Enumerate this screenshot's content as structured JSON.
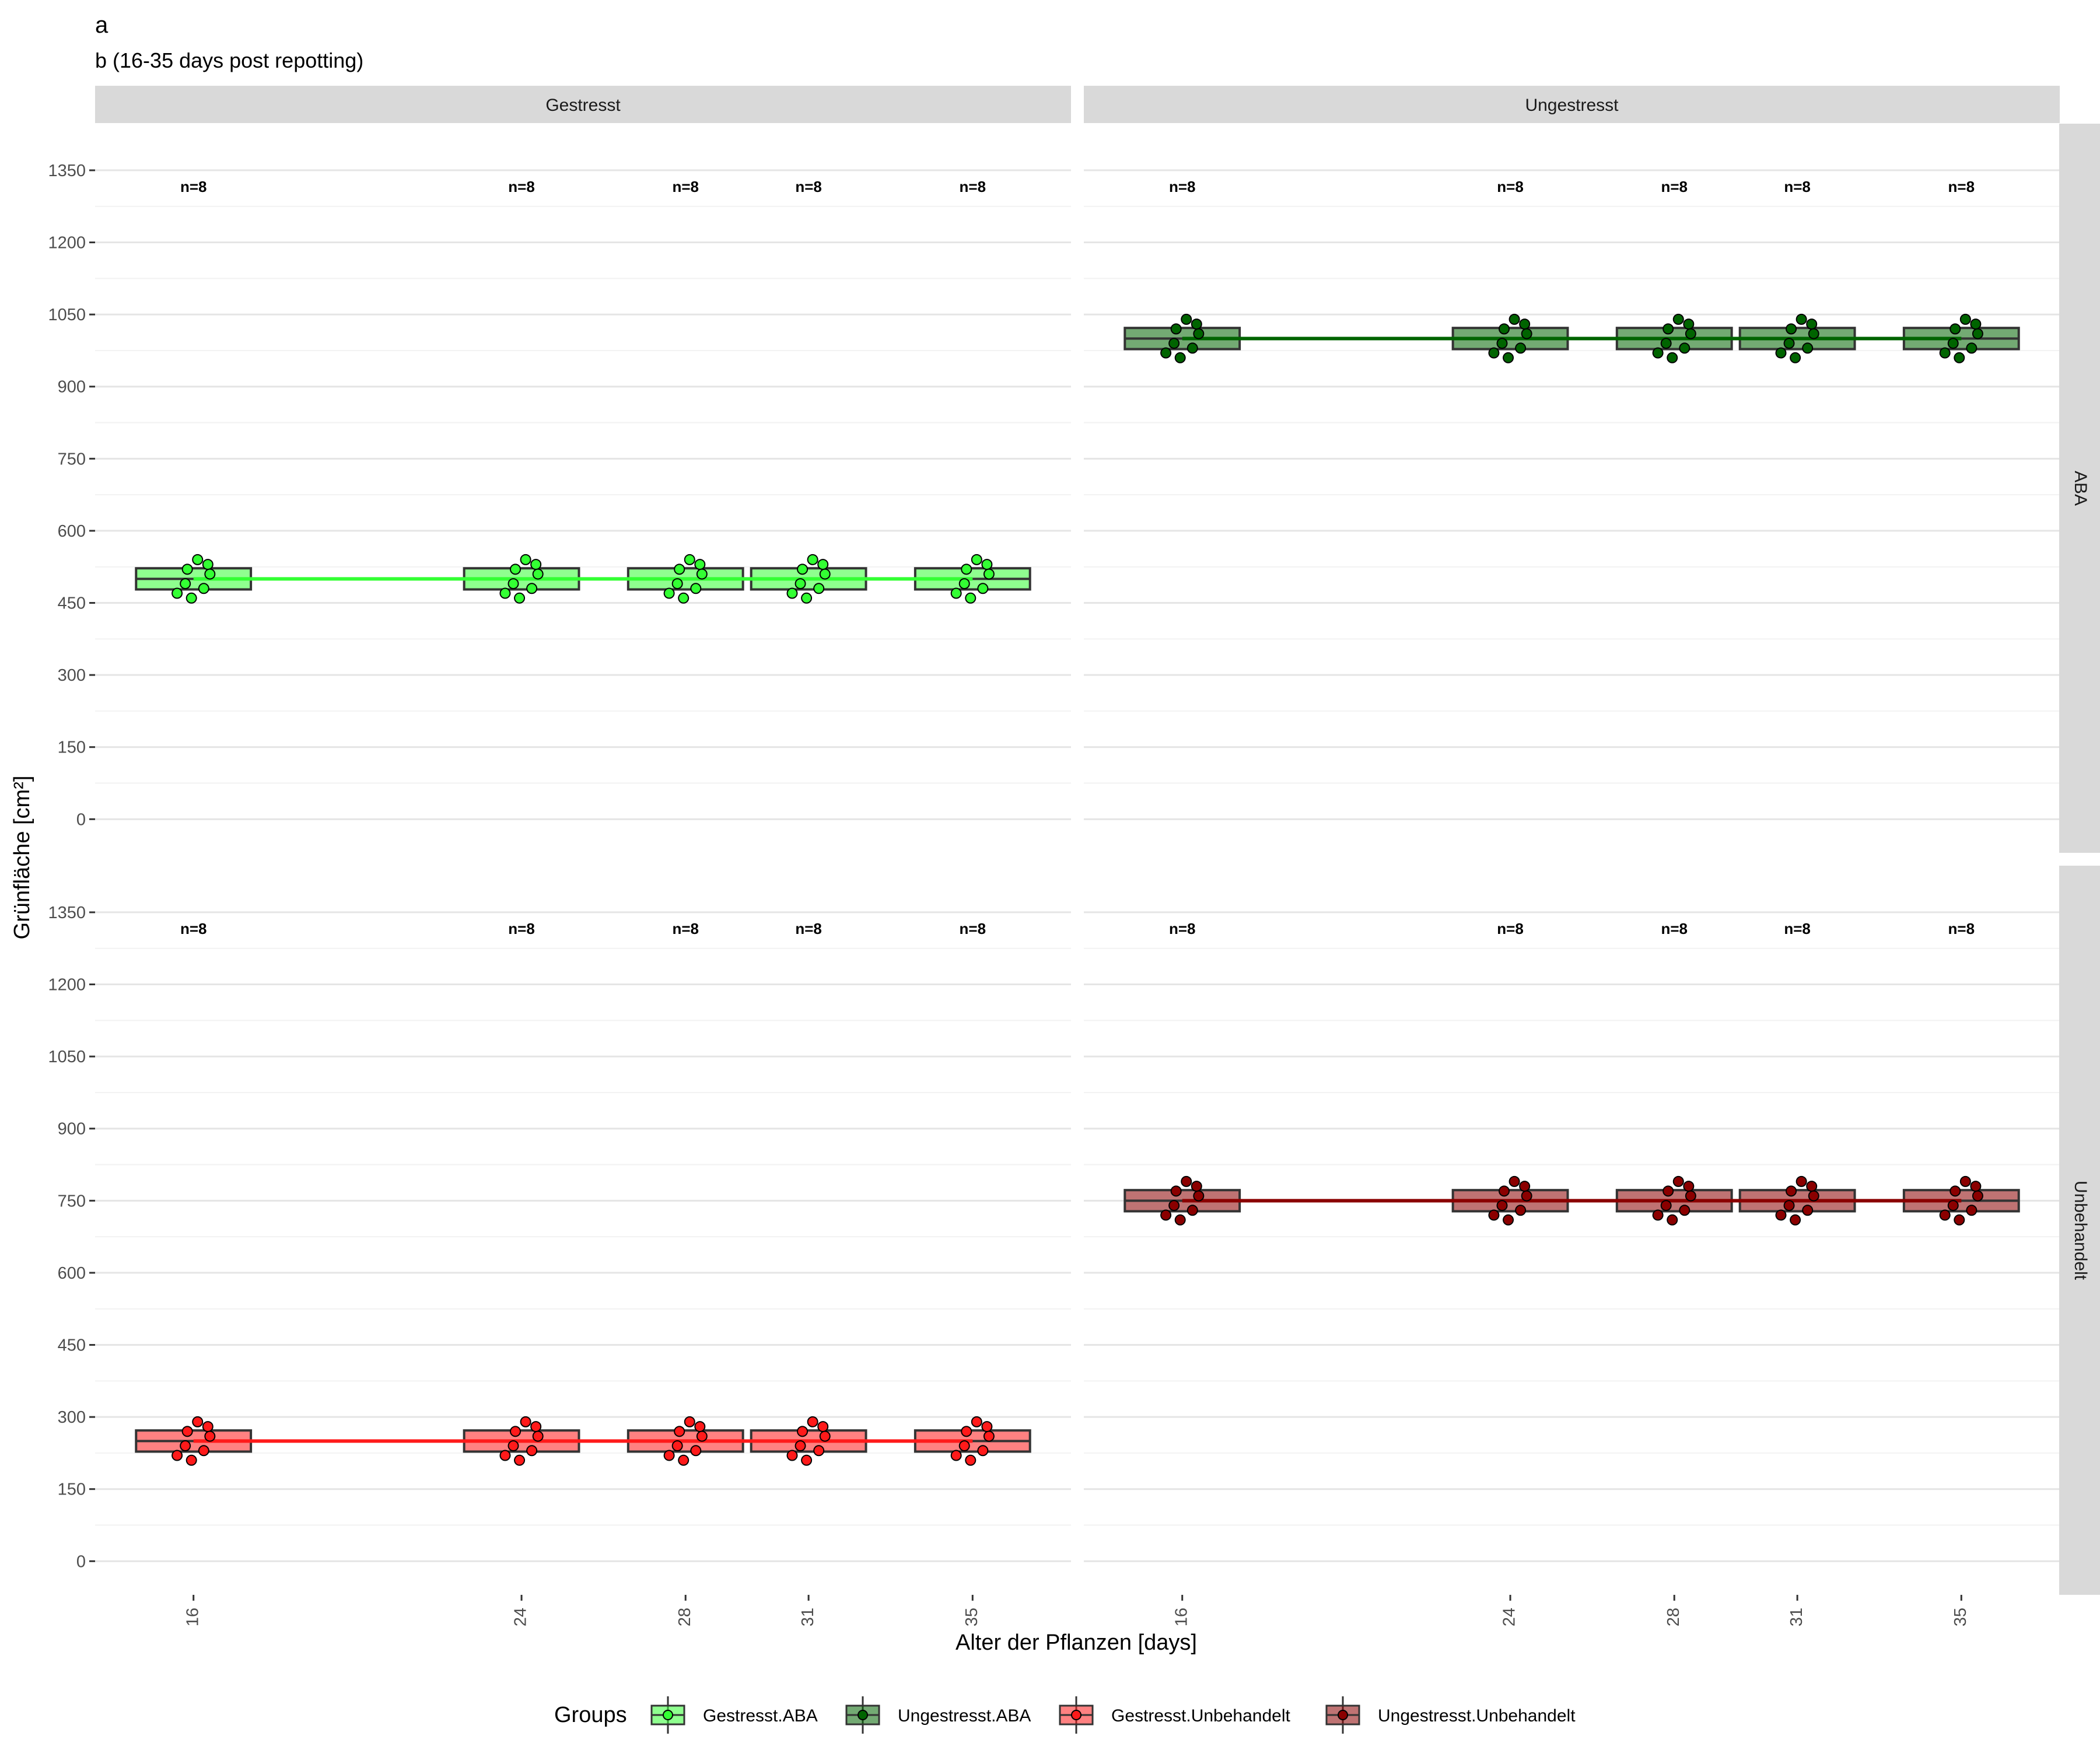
{
  "chart_data": {
    "type": "boxplot",
    "title": "a",
    "subtitle": "b (16-35 days post repotting)",
    "xlabel": "Alter der Pflanzen [days]",
    "ylabel": "Grünfläche [cm²]",
    "x_ticks": [
      16,
      24,
      28,
      31,
      35
    ],
    "x_range": [
      13.6,
      37.4
    ],
    "y_ticks": [
      0,
      150,
      300,
      450,
      600,
      750,
      900,
      1050,
      1200,
      1350
    ],
    "y_range": [
      -70,
      1447
    ],
    "col_facets": [
      "Gestresst",
      "Ungestresst"
    ],
    "row_facets": [
      "ABA",
      "Unbehandelt"
    ],
    "n_label": "n=8",
    "n_label_y": 1317,
    "legend": {
      "title": "Groups",
      "position": "bottom",
      "entries": [
        "Gestresst.ABA",
        "Ungestresst.ABA",
        "Gestresst.Unbehandelt",
        "Ungestresst.Unbehandelt"
      ]
    },
    "colors": {
      "Gestresst.ABA": "#33ff33",
      "Ungestresst.ABA": "#006400",
      "Gestresst.Unbehandelt": "#ff1a1a",
      "Ungestresst.Unbehandelt": "#8b0000"
    },
    "series": [
      {
        "name": "Gestresst.ABA",
        "col": 0,
        "row": 0,
        "trend_y": 500,
        "boxes": [
          {
            "x": 16,
            "q1": 478,
            "median": 500,
            "q3": 522
          },
          {
            "x": 24,
            "q1": 478,
            "median": 500,
            "q3": 522
          },
          {
            "x": 28,
            "q1": 478,
            "median": 500,
            "q3": 522
          },
          {
            "x": 31,
            "q1": 478,
            "median": 500,
            "q3": 522
          },
          {
            "x": 35,
            "q1": 478,
            "median": 500,
            "q3": 522
          }
        ],
        "points": [
          {
            "x": 16,
            "y": [
              540,
              530,
              520,
              510,
              490,
              480,
              470,
              460
            ]
          },
          {
            "x": 24,
            "y": [
              540,
              530,
              520,
              510,
              490,
              480,
              470,
              460
            ]
          },
          {
            "x": 28,
            "y": [
              540,
              530,
              520,
              510,
              490,
              480,
              470,
              460
            ]
          },
          {
            "x": 31,
            "y": [
              540,
              530,
              520,
              510,
              490,
              480,
              470,
              460
            ]
          },
          {
            "x": 35,
            "y": [
              540,
              530,
              520,
              510,
              490,
              480,
              470,
              460
            ]
          }
        ]
      },
      {
        "name": "Ungestresst.ABA",
        "col": 1,
        "row": 0,
        "trend_y": 1000,
        "boxes": [
          {
            "x": 16,
            "q1": 978,
            "median": 1000,
            "q3": 1022
          },
          {
            "x": 24,
            "q1": 978,
            "median": 1000,
            "q3": 1022
          },
          {
            "x": 28,
            "q1": 978,
            "median": 1000,
            "q3": 1022
          },
          {
            "x": 31,
            "q1": 978,
            "median": 1000,
            "q3": 1022
          },
          {
            "x": 35,
            "q1": 978,
            "median": 1000,
            "q3": 1022
          }
        ],
        "points": [
          {
            "x": 16,
            "y": [
              1040,
              1030,
              1020,
              1010,
              990,
              980,
              970,
              960
            ]
          },
          {
            "x": 24,
            "y": [
              1040,
              1030,
              1020,
              1010,
              990,
              980,
              970,
              960
            ]
          },
          {
            "x": 28,
            "y": [
              1040,
              1030,
              1020,
              1010,
              990,
              980,
              970,
              960
            ]
          },
          {
            "x": 31,
            "y": [
              1040,
              1030,
              1020,
              1010,
              990,
              980,
              970,
              960
            ]
          },
          {
            "x": 35,
            "y": [
              1040,
              1030,
              1020,
              1010,
              990,
              980,
              970,
              960
            ]
          }
        ]
      },
      {
        "name": "Gestresst.Unbehandelt",
        "col": 0,
        "row": 1,
        "trend_y": 250,
        "boxes": [
          {
            "x": 16,
            "q1": 228,
            "median": 250,
            "q3": 272
          },
          {
            "x": 24,
            "q1": 228,
            "median": 250,
            "q3": 272
          },
          {
            "x": 28,
            "q1": 228,
            "median": 250,
            "q3": 272
          },
          {
            "x": 31,
            "q1": 228,
            "median": 250,
            "q3": 272
          },
          {
            "x": 35,
            "q1": 228,
            "median": 250,
            "q3": 272
          }
        ],
        "points": [
          {
            "x": 16,
            "y": [
              290,
              280,
              270,
              260,
              240,
              230,
              220,
              210
            ]
          },
          {
            "x": 24,
            "y": [
              290,
              280,
              270,
              260,
              240,
              230,
              220,
              210
            ]
          },
          {
            "x": 28,
            "y": [
              290,
              280,
              270,
              260,
              240,
              230,
              220,
              210
            ]
          },
          {
            "x": 31,
            "y": [
              290,
              280,
              270,
              260,
              240,
              230,
              220,
              210
            ]
          },
          {
            "x": 35,
            "y": [
              290,
              280,
              270,
              260,
              240,
              230,
              220,
              210
            ]
          }
        ]
      },
      {
        "name": "Ungestresst.Unbehandelt",
        "col": 1,
        "row": 1,
        "trend_y": 750,
        "boxes": [
          {
            "x": 16,
            "q1": 728,
            "median": 750,
            "q3": 772
          },
          {
            "x": 24,
            "q1": 728,
            "median": 750,
            "q3": 772
          },
          {
            "x": 28,
            "q1": 728,
            "median": 750,
            "q3": 772
          },
          {
            "x": 31,
            "q1": 728,
            "median": 750,
            "q3": 772
          },
          {
            "x": 35,
            "q1": 728,
            "median": 750,
            "q3": 772
          }
        ],
        "points": [
          {
            "x": 16,
            "y": [
              790,
              780,
              770,
              760,
              740,
              730,
              720,
              710
            ]
          },
          {
            "x": 24,
            "y": [
              790,
              780,
              770,
              760,
              740,
              730,
              720,
              710
            ]
          },
          {
            "x": 28,
            "y": [
              790,
              780,
              770,
              760,
              740,
              730,
              720,
              710
            ]
          },
          {
            "x": 31,
            "y": [
              790,
              780,
              770,
              760,
              740,
              730,
              720,
              710
            ]
          },
          {
            "x": 35,
            "y": [
              790,
              780,
              770,
              760,
              740,
              730,
              720,
              710
            ]
          }
        ]
      }
    ]
  }
}
